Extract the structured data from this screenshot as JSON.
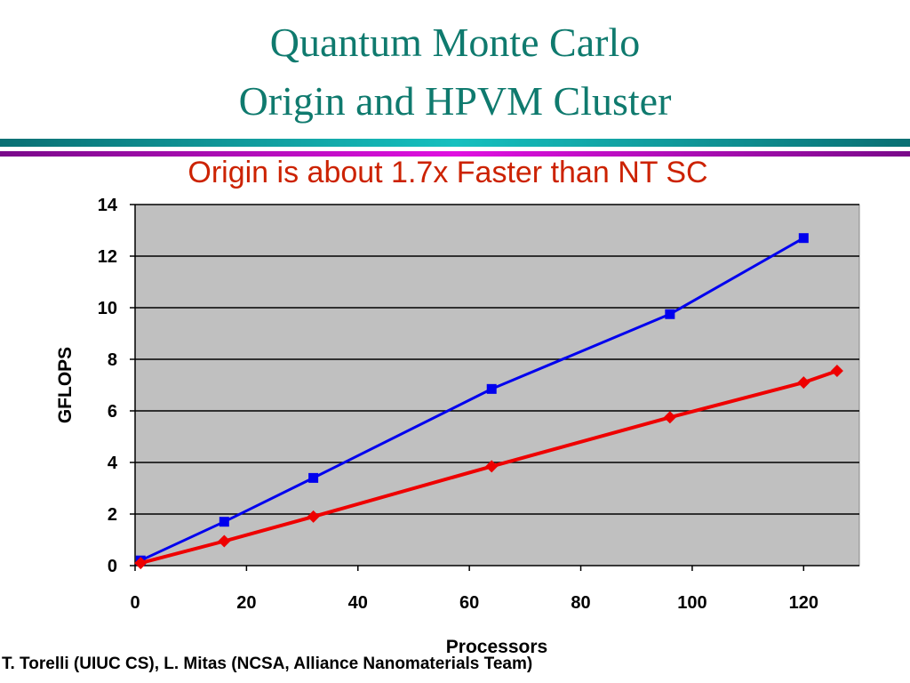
{
  "slide": {
    "title_line1": "Quantum Monte Carlo",
    "title_line2": "Origin and HPVM Cluster",
    "subtitle": "Origin is about 1.7x Faster than NT SC",
    "credit": "T. Torelli (UIUC CS), L. Mitas (NCSA, Alliance Nanomaterials Team)",
    "colors": {
      "title": "#0f7a6e",
      "subtitle": "#cc2200",
      "plot_bg": "#c0c0c0"
    }
  },
  "chart_data": {
    "type": "line",
    "xlabel": "Processors",
    "ylabel": "GFLOPS",
    "xlim": [
      0,
      130
    ],
    "ylim": [
      0,
      14
    ],
    "xticks": [
      0,
      20,
      40,
      60,
      80,
      100,
      120
    ],
    "yticks": [
      0,
      2,
      4,
      6,
      8,
      10,
      12,
      14
    ],
    "grid": "horizontal",
    "legend": "none",
    "series": [
      {
        "color": "#0000ee",
        "marker": "square",
        "x": [
          1,
          16,
          32,
          64,
          96,
          120
        ],
        "y": [
          0.2,
          1.7,
          3.4,
          6.85,
          9.75,
          12.7
        ]
      },
      {
        "color": "#ee0000",
        "marker": "diamond",
        "x": [
          1,
          16,
          32,
          64,
          96,
          120,
          126
        ],
        "y": [
          0.1,
          0.95,
          1.9,
          3.85,
          5.75,
          7.1,
          7.55
        ]
      }
    ]
  }
}
